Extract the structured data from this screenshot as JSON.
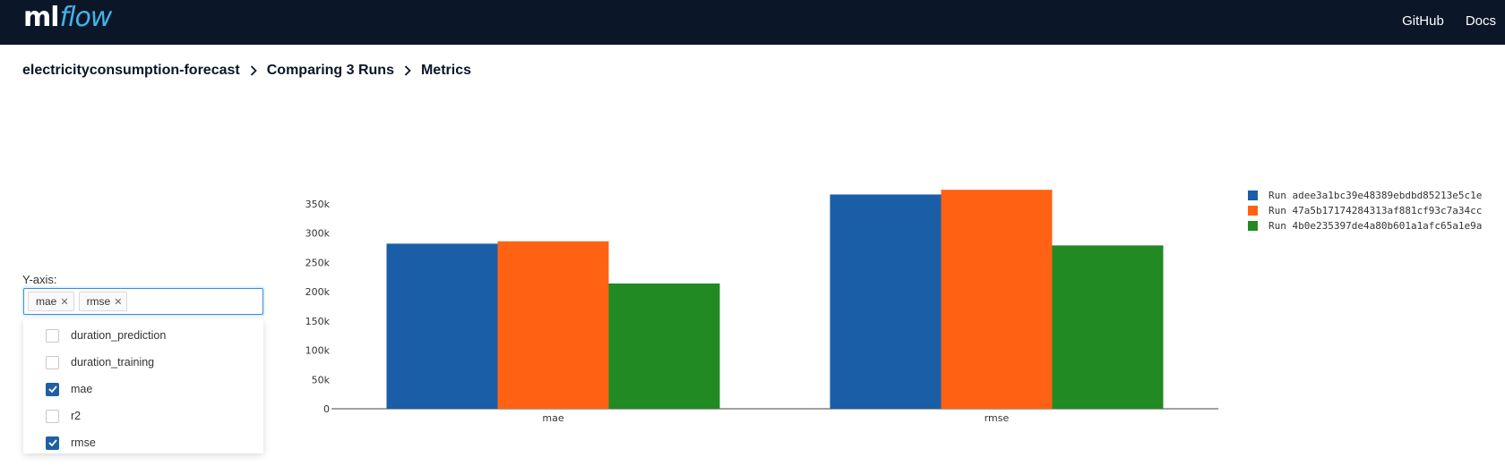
{
  "header": {
    "logo": {
      "ml": "ml",
      "flow": "flow"
    },
    "links": [
      "GitHub",
      "Docs"
    ]
  },
  "breadcrumb": [
    "electricityconsumption-forecast",
    "Comparing 3 Runs",
    "Metrics"
  ],
  "yaxis": {
    "label": "Y-axis:",
    "selected": [
      "mae",
      "rmse"
    ],
    "options": [
      {
        "label": "duration_prediction",
        "checked": false
      },
      {
        "label": "duration_training",
        "checked": false
      },
      {
        "label": "mae",
        "checked": true
      },
      {
        "label": "r2",
        "checked": false
      },
      {
        "label": "rmse",
        "checked": true
      }
    ]
  },
  "colors": {
    "nav_bg": "#0b1629",
    "accent": "#1e5fa6",
    "run1": "#1a5ea8",
    "run2": "#ff6213",
    "run3": "#228a23"
  },
  "chart_data": {
    "type": "bar",
    "categories": [
      "mae",
      "rmse"
    ],
    "series": [
      {
        "name": "Run adee3a1bc39e48389ebdbd85213e5c1e",
        "color": "#1a5ea8",
        "values": [
          282000,
          366000
        ]
      },
      {
        "name": "Run 47a5b17174284313af881cf93c7a34cc",
        "color": "#ff6213",
        "values": [
          286000,
          374000
        ]
      },
      {
        "name": "Run 4b0e235397de4a80b601a1afc65a1e9a",
        "color": "#228a23",
        "values": [
          214000,
          279000
        ]
      }
    ],
    "yticks": [
      0,
      50000,
      100000,
      150000,
      200000,
      250000,
      300000,
      350000
    ],
    "ytick_labels": [
      "0",
      "50k",
      "100k",
      "150k",
      "200k",
      "250k",
      "300k",
      "350k"
    ],
    "ylim": [
      0,
      385000
    ],
    "legend": "top-right",
    "grid": false
  }
}
